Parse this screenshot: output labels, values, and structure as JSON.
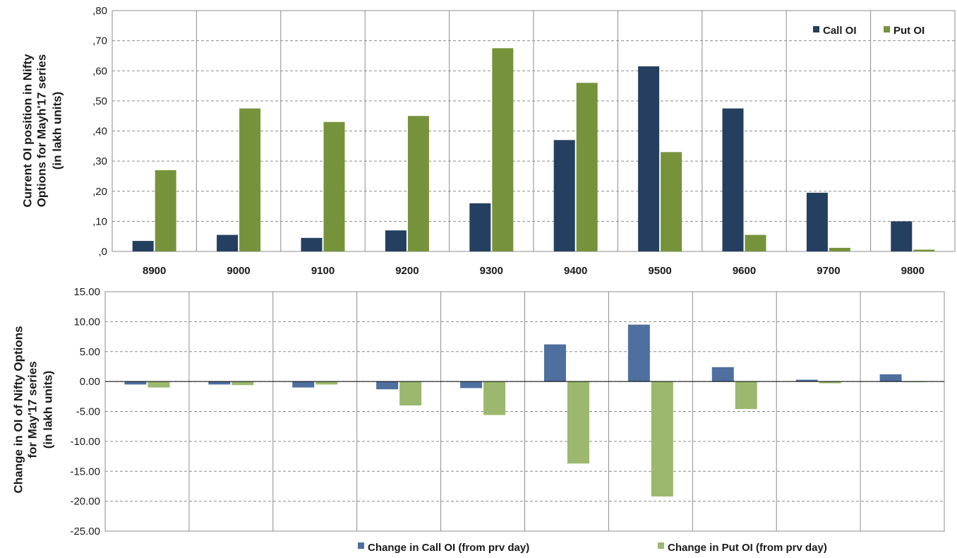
{
  "chart_data": [
    {
      "type": "bar",
      "ylabel": [
        "Current OI position in Nifty",
        "Options for Mayh'17  series",
        "(in lakh units)"
      ],
      "categories": [
        "8900",
        "9000",
        "9100",
        "9200",
        "9300",
        "9400",
        "9500",
        "9600",
        "9700",
        "9800"
      ],
      "ylim": [
        0,
        80
      ],
      "yticks": [
        0,
        10,
        20,
        30,
        40,
        50,
        60,
        70,
        80
      ],
      "ytick_labels": [
        ",0",
        ",10",
        ",20",
        ",30",
        ",40",
        ",50",
        ",60",
        ",70",
        ",80"
      ],
      "grid": true,
      "legend_position": "top-right",
      "series": [
        {
          "name": "Call OI",
          "color": "#243f60",
          "values": [
            3.5,
            5.5,
            4.5,
            7,
            16,
            37,
            61.5,
            47.5,
            19.5,
            10
          ]
        },
        {
          "name": "Put OI",
          "color": "#76933c",
          "values": [
            27,
            47.5,
            43,
            45,
            67.5,
            56,
            33,
            5.5,
            1.2,
            0.6
          ]
        }
      ]
    },
    {
      "type": "bar",
      "ylabel": [
        "Change in OI of Nifty Options",
        "for May'17  series",
        "(in lakh  units)"
      ],
      "categories": [
        "8900",
        "9000",
        "9100",
        "9200",
        "9300",
        "9400",
        "9500",
        "9600",
        "9700",
        "9800"
      ],
      "ylim": [
        -25,
        15
      ],
      "yticks": [
        -25,
        -20,
        -15,
        -10,
        -5,
        0,
        5,
        10,
        15
      ],
      "ytick_labels": [
        "-25.00",
        "-20.00",
        "-15.00",
        "-10.00",
        "-5.00",
        "0.00",
        "5.00",
        "10.00",
        "15.00"
      ],
      "grid": true,
      "legend_position": "bottom",
      "series": [
        {
          "name": "Change in Call OI (from prv day)",
          "color": "#4f6f9f",
          "values": [
            -0.5,
            -0.5,
            -1.0,
            -1.3,
            -1.1,
            6.2,
            9.5,
            2.4,
            0.3,
            1.2
          ]
        },
        {
          "name": "Change in Put OI (from prv day)",
          "color": "#9bb86e",
          "values": [
            -1.0,
            -0.6,
            -0.5,
            -4.0,
            -5.6,
            -13.7,
            -19.2,
            -4.6,
            -0.3,
            -0.1
          ]
        }
      ]
    }
  ]
}
